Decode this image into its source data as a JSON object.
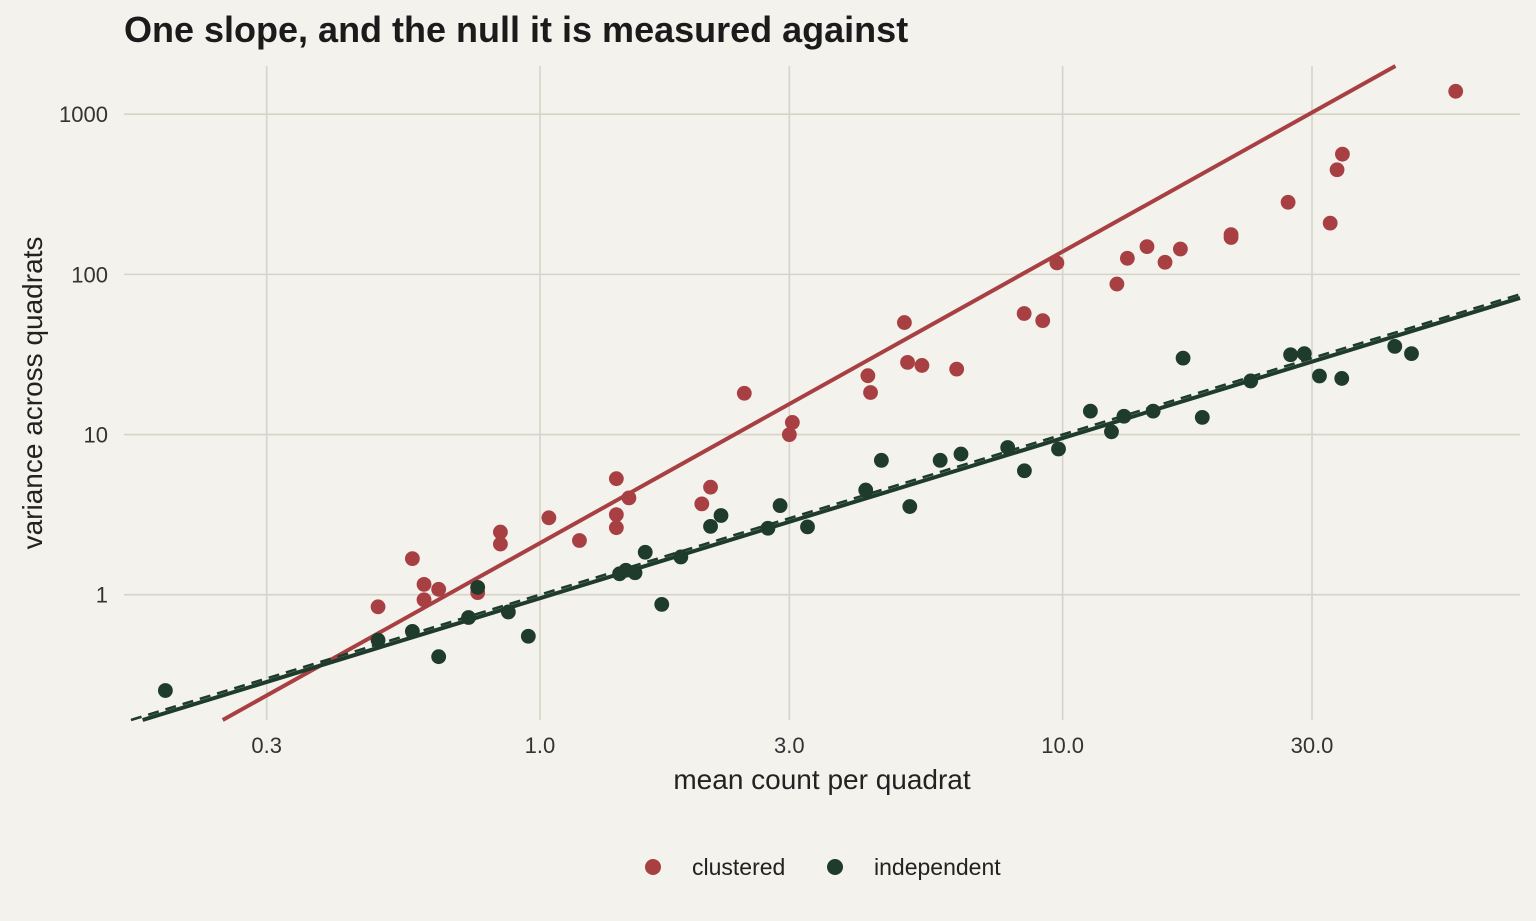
{
  "chart_data": {
    "type": "scatter",
    "title": "One slope, and the null it is measured against",
    "xlabel": "mean count per quadrat",
    "ylabel": "variance across quadrats",
    "x_scale": "log",
    "y_scale": "log",
    "xlim": [
      0.16,
      75
    ],
    "ylim": [
      0.165,
      2000
    ],
    "xticks": [
      0.3,
      1.0,
      3.0,
      10.0,
      30.0
    ],
    "xtick_labels": [
      "0.3",
      "1.0",
      "3.0",
      "10.0",
      "30.0"
    ],
    "yticks": [
      1,
      10,
      100,
      1000
    ],
    "ytick_labels": [
      "1",
      "10",
      "100",
      "1000"
    ],
    "grid": true,
    "legend_position": "bottom",
    "series": [
      {
        "name": "clustered",
        "color": "#a84043",
        "points": [
          [
            0.49,
            0.84
          ],
          [
            0.57,
            1.68
          ],
          [
            0.6,
            1.16
          ],
          [
            0.6,
            0.93
          ],
          [
            0.64,
            1.08
          ],
          [
            0.76,
            1.03
          ],
          [
            0.84,
            2.46
          ],
          [
            0.84,
            2.07
          ],
          [
            1.04,
            3.02
          ],
          [
            1.19,
            2.18
          ],
          [
            1.4,
            5.3
          ],
          [
            1.4,
            3.16
          ],
          [
            1.4,
            2.62
          ],
          [
            1.48,
            4.02
          ],
          [
            2.04,
            3.69
          ],
          [
            2.12,
            4.69
          ],
          [
            2.46,
            18.1
          ],
          [
            3.0,
            9.98
          ],
          [
            3.04,
            11.9
          ],
          [
            4.24,
            23.3
          ],
          [
            4.29,
            18.3
          ],
          [
            4.98,
            50.0
          ],
          [
            5.05,
            28.2
          ],
          [
            5.38,
            27.0
          ],
          [
            6.27,
            25.6
          ],
          [
            8.44,
            57.0
          ],
          [
            9.16,
            51.4
          ],
          [
            9.75,
            118.0
          ],
          [
            12.7,
            87.0
          ],
          [
            13.3,
            126.0
          ],
          [
            14.5,
            149.0
          ],
          [
            15.7,
            119.0
          ],
          [
            16.8,
            144.0
          ],
          [
            21.0,
            177.0
          ],
          [
            21.0,
            170.0
          ],
          [
            27.0,
            282.0
          ],
          [
            32.5,
            209.0
          ],
          [
            33.5,
            450.0
          ],
          [
            34.3,
            563.0
          ],
          [
            56.5,
            1390.0
          ]
        ],
        "fit": {
          "slope": 1.82,
          "intercept_at_x1": 2.1
        }
      },
      {
        "name": "independent",
        "color": "#1e3b2b",
        "points": [
          [
            0.192,
            0.252
          ],
          [
            0.49,
            0.52
          ],
          [
            0.57,
            0.59
          ],
          [
            0.64,
            0.41
          ],
          [
            0.73,
            0.72
          ],
          [
            0.76,
            1.11
          ],
          [
            0.87,
            0.78
          ],
          [
            0.95,
            0.55
          ],
          [
            1.42,
            1.35
          ],
          [
            1.46,
            1.42
          ],
          [
            1.52,
            1.37
          ],
          [
            1.59,
            1.84
          ],
          [
            1.71,
            0.87
          ],
          [
            1.86,
            1.72
          ],
          [
            2.12,
            2.67
          ],
          [
            2.22,
            3.12
          ],
          [
            2.73,
            2.6
          ],
          [
            2.88,
            3.6
          ],
          [
            3.25,
            2.65
          ],
          [
            4.2,
            4.5
          ],
          [
            4.5,
            6.9
          ],
          [
            5.1,
            3.55
          ],
          [
            5.83,
            6.9
          ],
          [
            6.39,
            7.55
          ],
          [
            7.85,
            8.3
          ],
          [
            8.45,
            5.94
          ],
          [
            9.82,
            8.12
          ],
          [
            11.3,
            14.0
          ],
          [
            12.4,
            10.4
          ],
          [
            13.1,
            13.0
          ],
          [
            14.9,
            14.0
          ],
          [
            17.0,
            30.0
          ],
          [
            18.5,
            12.8
          ],
          [
            22.9,
            21.6
          ],
          [
            27.3,
            31.5
          ],
          [
            29.0,
            32.0
          ],
          [
            31.0,
            23.2
          ],
          [
            34.2,
            22.4
          ],
          [
            43.2,
            35.5
          ],
          [
            46.5,
            32.0
          ]
        ],
        "fit": {
          "slope": 1.0,
          "intercept_at_x1": 0.95
        }
      }
    ],
    "null_line": {
      "label": "",
      "slope": 1.0,
      "intercept_at_x1": 1.0,
      "style": "dashed"
    }
  }
}
